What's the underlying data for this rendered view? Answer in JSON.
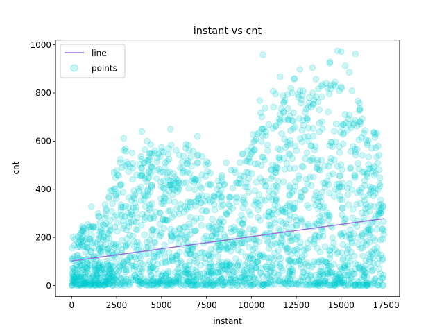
{
  "chart_data": {
    "type": "scatter",
    "title": "instant vs cnt",
    "xlabel": "instant",
    "ylabel": "cnt",
    "xlim": [
      -900,
      18250
    ],
    "ylim": [
      -45,
      1020
    ],
    "x_ticks": [
      0,
      2500,
      5000,
      7500,
      10000,
      12500,
      15000,
      17500
    ],
    "x_tick_labels": [
      "0",
      "2500",
      "5000",
      "7500",
      "10000",
      "12500",
      "15000",
      "17500"
    ],
    "y_ticks": [
      0,
      200,
      400,
      600,
      800,
      1000
    ],
    "y_tick_labels": [
      "0",
      "200",
      "400",
      "600",
      "800",
      "1000"
    ],
    "grid": false,
    "legend": {
      "position": "upper-left",
      "entries": [
        "line",
        "points"
      ]
    },
    "series": [
      {
        "name": "line",
        "kind": "line",
        "color": "#9370db",
        "x": [
          0,
          17379
        ],
        "y": [
          102,
          278
        ]
      },
      {
        "name": "points",
        "kind": "scatter",
        "color": "#00ced1",
        "alpha": 0.2,
        "n_points": 17379,
        "envelope_x": [
          0,
          500,
          1000,
          1500,
          2000,
          2500,
          3000,
          3500,
          4000,
          4500,
          5000,
          5500,
          6000,
          6500,
          7000,
          7500,
          8000,
          8500,
          9000,
          9500,
          10000,
          10500,
          11000,
          11500,
          12000,
          12500,
          13000,
          13500,
          14000,
          14500,
          15000,
          15500,
          16000,
          16500,
          17000,
          17379
        ],
        "envelope_max": [
          220,
          250,
          280,
          310,
          380,
          520,
          600,
          600,
          600,
          590,
          590,
          630,
          600,
          600,
          600,
          560,
          450,
          500,
          530,
          560,
          640,
          800,
          820,
          840,
          860,
          880,
          880,
          880,
          900,
          960,
          970,
          960,
          800,
          680,
          680,
          320
        ],
        "sample_points": [
          [
            1100,
            328
          ],
          [
            3900,
            640
          ],
          [
            5500,
            650
          ],
          [
            7000,
            620
          ],
          [
            10650,
            958
          ],
          [
            14800,
            975
          ],
          [
            15000,
            972
          ],
          [
            15800,
            962
          ],
          [
            13400,
            905
          ],
          [
            12700,
            898
          ],
          [
            11600,
            867
          ],
          [
            9800,
            560
          ],
          [
            8600,
            510
          ],
          [
            2900,
            612
          ],
          [
            4200,
            600
          ]
        ]
      }
    ]
  }
}
